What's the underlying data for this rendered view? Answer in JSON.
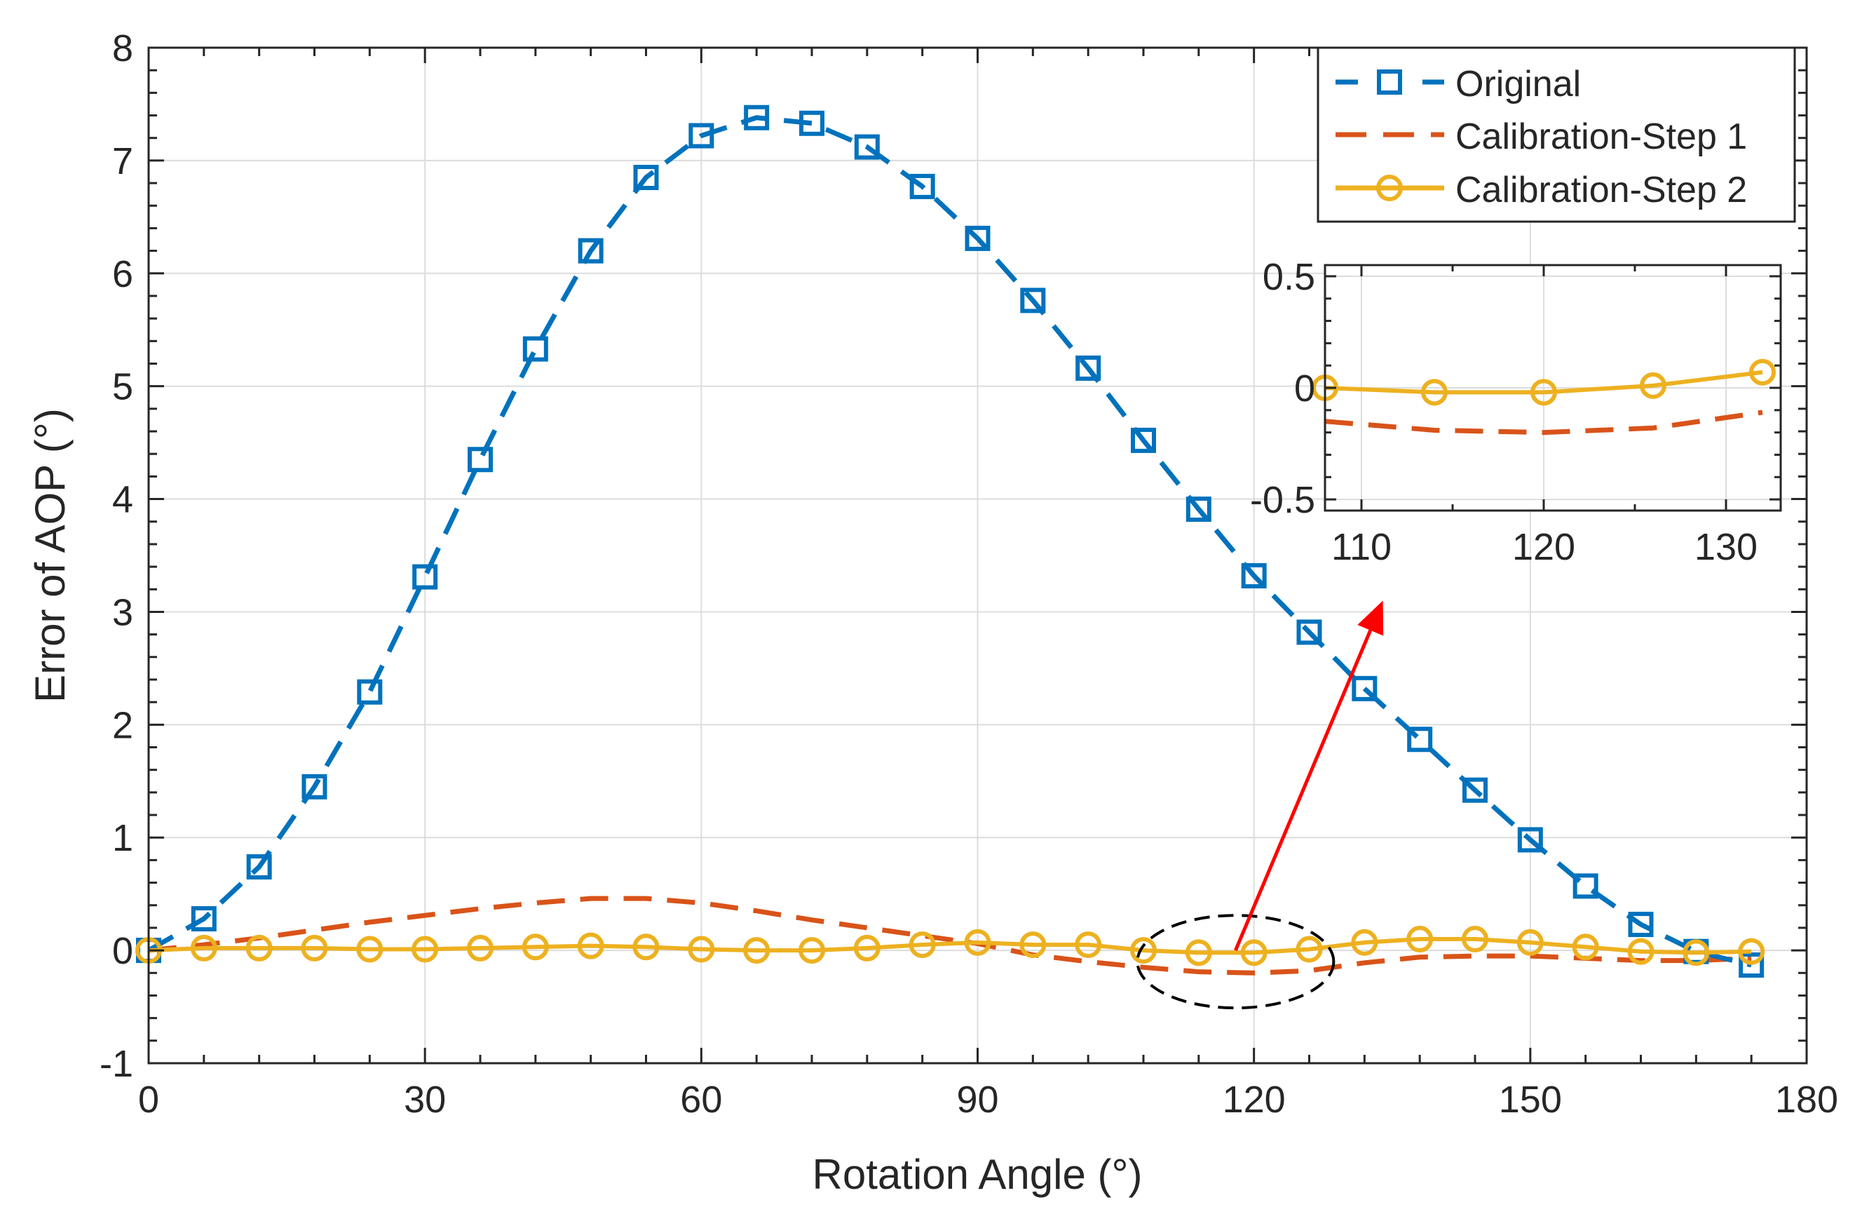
{
  "chart_data": [
    {
      "type": "line",
      "xlabel": "Rotation Angle (°)",
      "ylabel": "Error of AOP (°)",
      "xlim": [
        0,
        180
      ],
      "ylim": [
        -1,
        8
      ],
      "xticks": [
        "0",
        "30",
        "60",
        "90",
        "120",
        "150",
        "180"
      ],
      "yticks": [
        "-1",
        "0",
        "1",
        "2",
        "3",
        "4",
        "5",
        "6",
        "7",
        "8"
      ],
      "grid": true,
      "legend_position": "top-right",
      "x": [
        0,
        6,
        12,
        18,
        24,
        30,
        36,
        42,
        48,
        54,
        60,
        66,
        72,
        78,
        84,
        90,
        96,
        102,
        108,
        114,
        120,
        126,
        132,
        138,
        144,
        150,
        156,
        162,
        168,
        174
      ],
      "series": [
        {
          "name": "Original",
          "color": "#0072BD",
          "line": "dashed",
          "marker": "square",
          "values": [
            0.0,
            0.28,
            0.74,
            1.45,
            2.29,
            3.31,
            4.35,
            5.33,
            6.2,
            6.85,
            7.22,
            7.38,
            7.33,
            7.12,
            6.77,
            6.31,
            5.76,
            5.16,
            4.52,
            3.91,
            3.32,
            2.82,
            2.32,
            1.87,
            1.42,
            0.98,
            0.57,
            0.23,
            -0.01,
            -0.13
          ]
        },
        {
          "name": "Calibration-Step 1",
          "color": "#D95319",
          "line": "dashed",
          "marker": "none",
          "values": [
            0.0,
            0.05,
            0.11,
            0.18,
            0.25,
            0.31,
            0.37,
            0.42,
            0.46,
            0.46,
            0.42,
            0.35,
            0.27,
            0.2,
            0.13,
            0.06,
            -0.04,
            -0.1,
            -0.15,
            -0.19,
            -0.2,
            -0.18,
            -0.11,
            -0.06,
            -0.05,
            -0.05,
            -0.07,
            -0.09,
            -0.09,
            -0.07
          ]
        },
        {
          "name": "Calibration-Step 2",
          "color": "#EDB120",
          "line": "solid",
          "marker": "circle",
          "values": [
            0.0,
            0.02,
            0.02,
            0.02,
            0.01,
            0.01,
            0.02,
            0.03,
            0.04,
            0.03,
            0.01,
            0.0,
            0.0,
            0.02,
            0.05,
            0.07,
            0.05,
            0.05,
            0.0,
            -0.02,
            -0.02,
            0.01,
            0.07,
            0.1,
            0.1,
            0.07,
            0.03,
            -0.01,
            -0.02,
            -0.01
          ]
        }
      ],
      "annotations": [
        {
          "type": "ellipse",
          "center_x": 118,
          "center_y": -0.1,
          "stroke": "#000000",
          "style": "dashed"
        },
        {
          "type": "arrow",
          "from_x": 118,
          "from_y": 0.0,
          "to_x": 134,
          "to_y": 3.1,
          "stroke": "#FF0000"
        }
      ]
    },
    {
      "type": "line",
      "role": "inset",
      "xlim": [
        108,
        133
      ],
      "ylim": [
        -0.55,
        0.55
      ],
      "xticks": [
        "110",
        "120",
        "130"
      ],
      "yticks": [
        "-0.5",
        "0",
        "0.5"
      ],
      "grid": true,
      "x": [
        108,
        114,
        120,
        126,
        132
      ],
      "series": [
        {
          "color": "#D95319",
          "line": "dashed",
          "marker": "none",
          "values": [
            -0.15,
            -0.19,
            -0.2,
            -0.18,
            -0.11
          ]
        },
        {
          "color": "#EDB120",
          "line": "solid",
          "marker": "circle",
          "values": [
            0.0,
            -0.02,
            -0.02,
            0.01,
            0.07
          ]
        }
      ]
    }
  ]
}
